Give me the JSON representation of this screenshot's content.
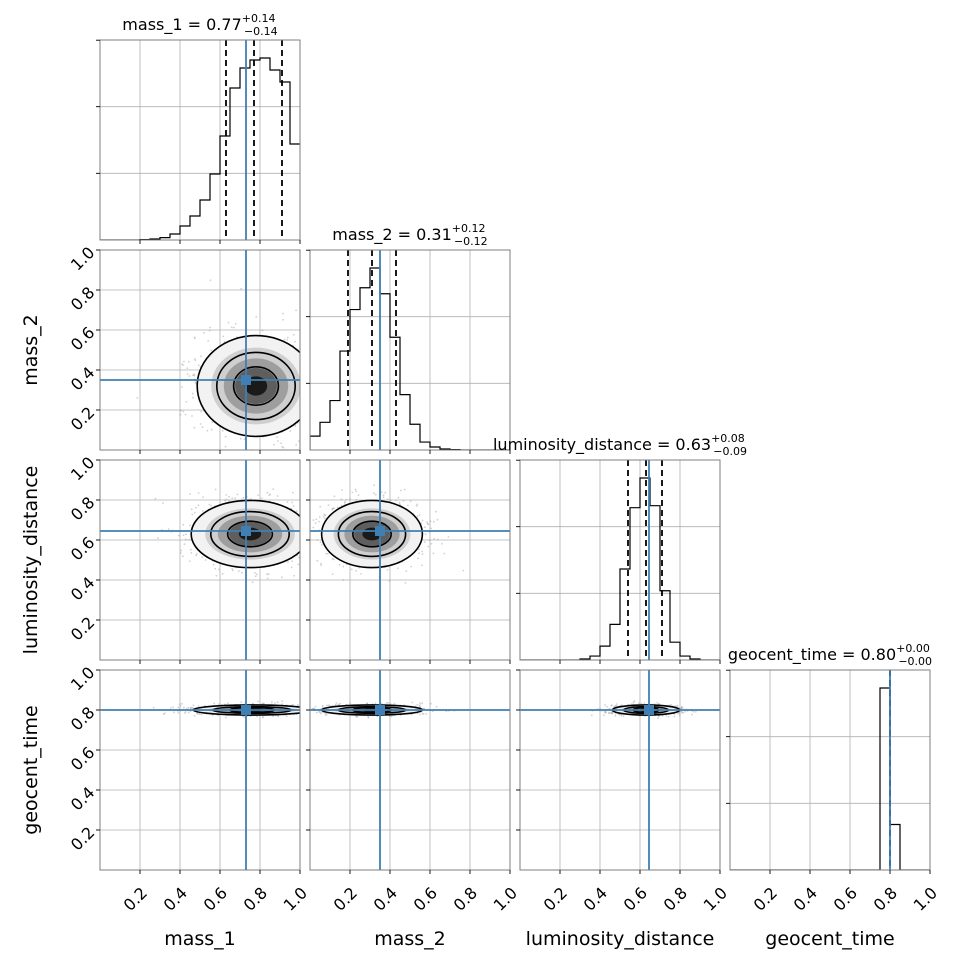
{
  "chart_data": {
    "type": "corner",
    "parameters": [
      "mass_1",
      "mass_2",
      "luminosity_distance",
      "geocent_time"
    ],
    "axis_range": [
      0.0,
      1.0
    ],
    "tick_labels": [
      "0.2",
      "0.4",
      "0.6",
      "0.8",
      "1.0"
    ],
    "tick_values": [
      0.2,
      0.4,
      0.6,
      0.8,
      1.0
    ],
    "grid": true,
    "truth_color": "#3f7fb3",
    "truths": {
      "mass_1": 0.73,
      "mass_2": 0.35,
      "luminosity_distance": 0.645,
      "geocent_time": 0.8
    },
    "titles": [
      {
        "param": "mass_1",
        "label": "mass_1 = 0.77",
        "plus": "+0.14",
        "minus": "−0.14",
        "median": 0.77,
        "lower": 0.63,
        "upper": 0.91
      },
      {
        "param": "mass_2",
        "label": "mass_2 = 0.31",
        "plus": "+0.12",
        "minus": "−0.12",
        "median": 0.31,
        "lower": 0.19,
        "upper": 0.43
      },
      {
        "param": "luminosity_distance",
        "label": "luminosity_distance = 0.63",
        "plus": "+0.08",
        "minus": "−0.09",
        "median": 0.63,
        "lower": 0.54,
        "upper": 0.71
      },
      {
        "param": "geocent_time",
        "label": "geocent_time = 0.80",
        "plus": "+0.00",
        "minus": "−0.00",
        "median": 0.8,
        "lower": 0.8,
        "upper": 0.8
      }
    ],
    "histograms": {
      "mass_1": {
        "edges": [
          0.0,
          0.05,
          0.1,
          0.15,
          0.2,
          0.25,
          0.3,
          0.35,
          0.4,
          0.45,
          0.5,
          0.55,
          0.6,
          0.65,
          0.7,
          0.75,
          0.8,
          0.85,
          0.9,
          0.95,
          1.0
        ],
        "values": [
          0,
          0,
          0,
          0,
          0.002,
          0.005,
          0.012,
          0.03,
          0.07,
          0.12,
          0.2,
          0.33,
          0.52,
          0.76,
          0.86,
          0.9,
          0.91,
          0.85,
          0.79,
          0.48
        ]
      },
      "mass_2": {
        "edges": [
          0.0,
          0.05,
          0.1,
          0.15,
          0.2,
          0.25,
          0.3,
          0.35,
          0.4,
          0.45,
          0.5,
          0.55,
          0.6,
          0.65,
          0.7,
          0.75,
          0.8,
          0.85,
          0.9,
          0.95,
          1.0
        ],
        "values": [
          0.07,
          0.14,
          0.25,
          0.5,
          0.71,
          0.82,
          0.92,
          0.79,
          0.57,
          0.28,
          0.13,
          0.04,
          0.015,
          0.005,
          0.002,
          0,
          0,
          0,
          0,
          0
        ]
      },
      "luminosity_distance": {
        "edges": [
          0.0,
          0.05,
          0.1,
          0.15,
          0.2,
          0.25,
          0.3,
          0.35,
          0.4,
          0.45,
          0.5,
          0.55,
          0.6,
          0.65,
          0.7,
          0.75,
          0.8,
          0.85,
          0.9,
          0.95,
          1.0
        ],
        "values": [
          0,
          0,
          0,
          0,
          0,
          0,
          0.005,
          0.02,
          0.07,
          0.18,
          0.46,
          0.77,
          0.92,
          0.78,
          0.35,
          0.09,
          0.02,
          0.005,
          0,
          0
        ]
      },
      "geocent_time": {
        "edges": [
          0.0,
          0.05,
          0.1,
          0.15,
          0.2,
          0.25,
          0.3,
          0.35,
          0.4,
          0.45,
          0.5,
          0.55,
          0.6,
          0.65,
          0.7,
          0.75,
          0.8,
          0.85,
          0.9,
          0.95,
          1.0
        ],
        "values": [
          0,
          0,
          0,
          0,
          0,
          0,
          0,
          0,
          0,
          0,
          0,
          0,
          0,
          0,
          0,
          0.92,
          0.23,
          0,
          0,
          0
        ]
      }
    },
    "joint": [
      {
        "x": "mass_1",
        "y": "mass_2",
        "center": [
          0.78,
          0.32
        ],
        "sigma": [
          0.14,
          0.12
        ]
      },
      {
        "x": "mass_1",
        "y": "luminosity_distance",
        "center": [
          0.75,
          0.63
        ],
        "sigma": [
          0.14,
          0.08
        ]
      },
      {
        "x": "mass_2",
        "y": "luminosity_distance",
        "center": [
          0.31,
          0.63
        ],
        "sigma": [
          0.12,
          0.08
        ]
      },
      {
        "x": "mass_1",
        "y": "geocent_time",
        "center": [
          0.76,
          0.8
        ],
        "sigma": [
          0.14,
          0.012
        ]
      },
      {
        "x": "mass_2",
        "y": "geocent_time",
        "center": [
          0.31,
          0.8
        ],
        "sigma": [
          0.12,
          0.012
        ]
      },
      {
        "x": "luminosity_distance",
        "y": "geocent_time",
        "center": [
          0.63,
          0.8
        ],
        "sigma": [
          0.08,
          0.012
        ]
      }
    ]
  }
}
